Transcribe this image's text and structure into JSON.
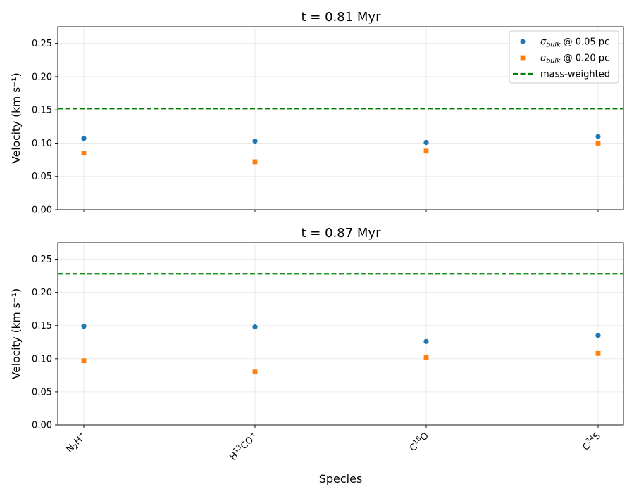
{
  "chart_data": [
    {
      "type": "scatter",
      "title": "t = 0.81 Myr",
      "ylabel": "Velocity (km s⁻¹)",
      "xlabel": "",
      "categories": [
        "N₂H⁺",
        "H¹³CO⁺",
        "C¹⁸O",
        "C³⁴S"
      ],
      "ylim": [
        0,
        0.275
      ],
      "yticks": [
        "0.00",
        "0.05",
        "0.10",
        "0.15",
        "0.20",
        "0.25"
      ],
      "grid": true,
      "legend_position": "top-right",
      "series": [
        {
          "name": "σbulk @ 0.05 pc",
          "marker": "circle",
          "color": "#1f77b4",
          "values": [
            0.107,
            0.103,
            0.101,
            0.11
          ]
        },
        {
          "name": "σbulk @ 0.20 pc",
          "marker": "square",
          "color": "#ff7f0e",
          "values": [
            0.085,
            0.072,
            0.088,
            0.1
          ]
        }
      ],
      "reference_line": {
        "name": "mass-weighted",
        "value": 0.152,
        "color": "#008000",
        "style": "dashed"
      }
    },
    {
      "type": "scatter",
      "title": "t = 0.87 Myr",
      "ylabel": "Velocity (km s⁻¹)",
      "xlabel": "Species",
      "categories": [
        "N₂H⁺",
        "H¹³CO⁺",
        "C¹⁸O",
        "C³⁴S"
      ],
      "ylim": [
        0,
        0.275
      ],
      "yticks": [
        "0.00",
        "0.05",
        "0.10",
        "0.15",
        "0.20",
        "0.25"
      ],
      "grid": true,
      "series": [
        {
          "name": "σbulk @ 0.05 pc",
          "marker": "circle",
          "color": "#1f77b4",
          "values": [
            0.149,
            0.148,
            0.126,
            0.135
          ]
        },
        {
          "name": "σbulk @ 0.20 pc",
          "marker": "square",
          "color": "#ff7f0e",
          "values": [
            0.097,
            0.08,
            0.102,
            0.108
          ]
        }
      ],
      "reference_line": {
        "name": "mass-weighted",
        "value": 0.228,
        "color": "#008000",
        "style": "dashed"
      }
    }
  ]
}
